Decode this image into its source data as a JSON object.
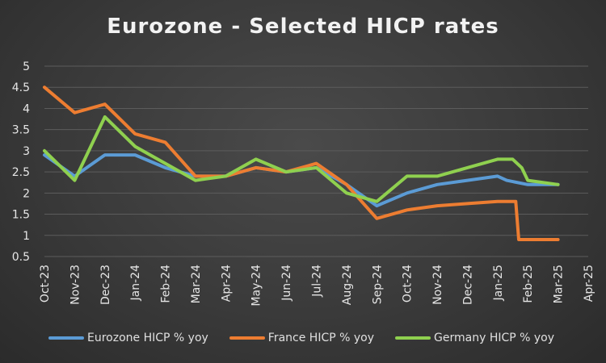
{
  "chart_data": {
    "type": "line",
    "title": "Eurozone - Selected HICP rates",
    "xlabel": "",
    "ylabel": "",
    "ylim": [
      0.5,
      5
    ],
    "y_ticks": [
      "5",
      "4.5",
      "4",
      "3.5",
      "3",
      "2.5",
      "2",
      "1.5",
      "1",
      "0.5"
    ],
    "y_tick_values": [
      5,
      4.5,
      4,
      3.5,
      3,
      2.5,
      2,
      1.5,
      1,
      0.5
    ],
    "categories": [
      "Oct-23",
      "Nov-23",
      "Dec-23",
      "Jan-24",
      "Feb-24",
      "Mar-24",
      "Apr-24",
      "May-24",
      "Jun-24",
      "Jul-24",
      "Aug-24",
      "Sep-24",
      "Oct-24",
      "Nov-24",
      "Dec-24",
      "Jan-25",
      "Feb-25",
      "Mar-25",
      "Apr-25"
    ],
    "x": [
      0,
      1,
      2,
      3,
      4,
      5,
      6,
      7,
      8,
      9,
      10,
      11,
      12,
      13,
      14,
      15,
      15.3,
      16,
      17
    ],
    "grid": true,
    "legend_position": "bottom",
    "series": [
      {
        "name": "Eurozone HICP % yoy",
        "color": "#5b9bd5",
        "x": [
          0,
          1,
          2,
          3,
          4,
          5,
          6,
          7,
          8,
          9,
          10,
          11,
          12,
          13,
          14,
          15,
          15.3,
          16,
          17
        ],
        "values": [
          2.9,
          2.4,
          2.9,
          2.9,
          2.6,
          2.4,
          2.4,
          2.6,
          2.5,
          2.6,
          2.2,
          1.7,
          2.0,
          2.2,
          2.3,
          2.4,
          2.3,
          2.2,
          2.2
        ]
      },
      {
        "name": "France HICP % yoy",
        "color": "#ed7d31",
        "x": [
          0,
          1,
          2,
          3,
          4,
          5,
          6,
          7,
          8,
          9,
          10,
          11,
          12,
          13,
          14,
          15,
          15.6,
          15.7,
          16,
          17
        ],
        "values": [
          4.5,
          3.9,
          4.1,
          3.4,
          3.2,
          2.4,
          2.4,
          2.6,
          2.5,
          2.7,
          2.2,
          1.4,
          1.6,
          1.7,
          1.75,
          1.8,
          1.8,
          0.9,
          0.9,
          0.9
        ]
      },
      {
        "name": "Germany HICP % yoy",
        "color": "#8fd04f",
        "x": [
          0,
          1,
          2,
          3,
          4,
          5,
          6,
          7,
          8,
          9,
          10,
          11,
          12,
          13,
          14,
          15,
          15.5,
          15.8,
          16,
          17
        ],
        "values": [
          3.0,
          2.3,
          3.8,
          3.1,
          2.7,
          2.3,
          2.4,
          2.8,
          2.5,
          2.6,
          2.0,
          1.8,
          2.4,
          2.4,
          2.6,
          2.8,
          2.8,
          2.6,
          2.3,
          2.2
        ]
      }
    ]
  }
}
